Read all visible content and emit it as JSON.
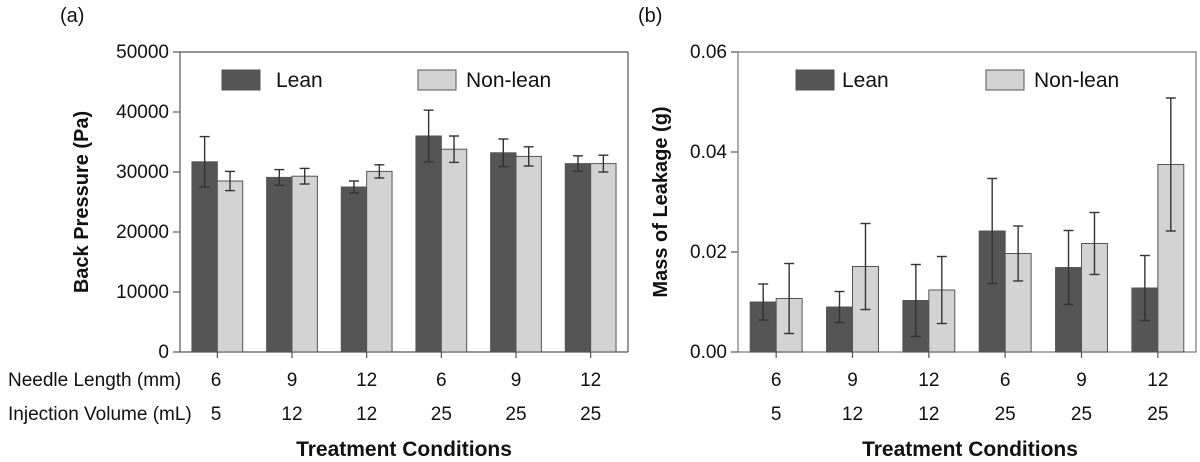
{
  "chart_data": [
    {
      "type": "bar",
      "panel_label": "(a)",
      "ylabel": "Back Pressure (Pa)",
      "xlabel": "Treatment Conditions",
      "ylim": [
        0,
        50000
      ],
      "yticks": [
        0,
        10000,
        20000,
        30000,
        40000,
        50000
      ],
      "ytick_labels": [
        "0",
        "10000",
        "20000",
        "30000",
        "40000",
        "50000"
      ],
      "row_labels": [
        "Needle Length (mm)",
        "Injection Volume (mL)"
      ],
      "needle_length": [
        "6",
        "9",
        "12",
        "6",
        "9",
        "12"
      ],
      "injection_volume": [
        "5",
        "12",
        "12",
        "25",
        "25",
        "25"
      ],
      "legend_position": "top",
      "series": [
        {
          "name": "Lean",
          "color": "#555555",
          "values": [
            31700,
            29100,
            27500,
            36000,
            33200,
            31400
          ],
          "errors": [
            4200,
            1300,
            1000,
            4300,
            2300,
            1300
          ]
        },
        {
          "name": "Non-lean",
          "color": "#d3d3d3",
          "values": [
            28500,
            29300,
            30100,
            33800,
            32600,
            31400
          ],
          "errors": [
            1600,
            1300,
            1100,
            2200,
            1600,
            1400
          ]
        }
      ]
    },
    {
      "type": "bar",
      "panel_label": "(b)",
      "ylabel": "Mass of Leakage (g)",
      "xlabel": "Treatment Conditions",
      "ylim": [
        0,
        0.06
      ],
      "yticks": [
        0,
        0.02,
        0.04,
        0.06
      ],
      "ytick_labels": [
        "0.00",
        "0.02",
        "0.04",
        "0.06"
      ],
      "needle_length": [
        "6",
        "9",
        "12",
        "6",
        "9",
        "12"
      ],
      "injection_volume": [
        "5",
        "12",
        "12",
        "25",
        "25",
        "25"
      ],
      "legend_position": "top",
      "series": [
        {
          "name": "Lean",
          "color": "#555555",
          "values": [
            0.01,
            0.009,
            0.0103,
            0.0242,
            0.0169,
            0.0128
          ],
          "errors": [
            0.0036,
            0.0031,
            0.0072,
            0.0105,
            0.0074,
            0.0065
          ]
        },
        {
          "name": "Non-lean",
          "color": "#d3d3d3",
          "values": [
            0.0107,
            0.0171,
            0.0124,
            0.0197,
            0.0217,
            0.0375
          ],
          "errors": [
            0.007,
            0.0086,
            0.0067,
            0.0055,
            0.0062,
            0.0133
          ]
        }
      ]
    }
  ]
}
